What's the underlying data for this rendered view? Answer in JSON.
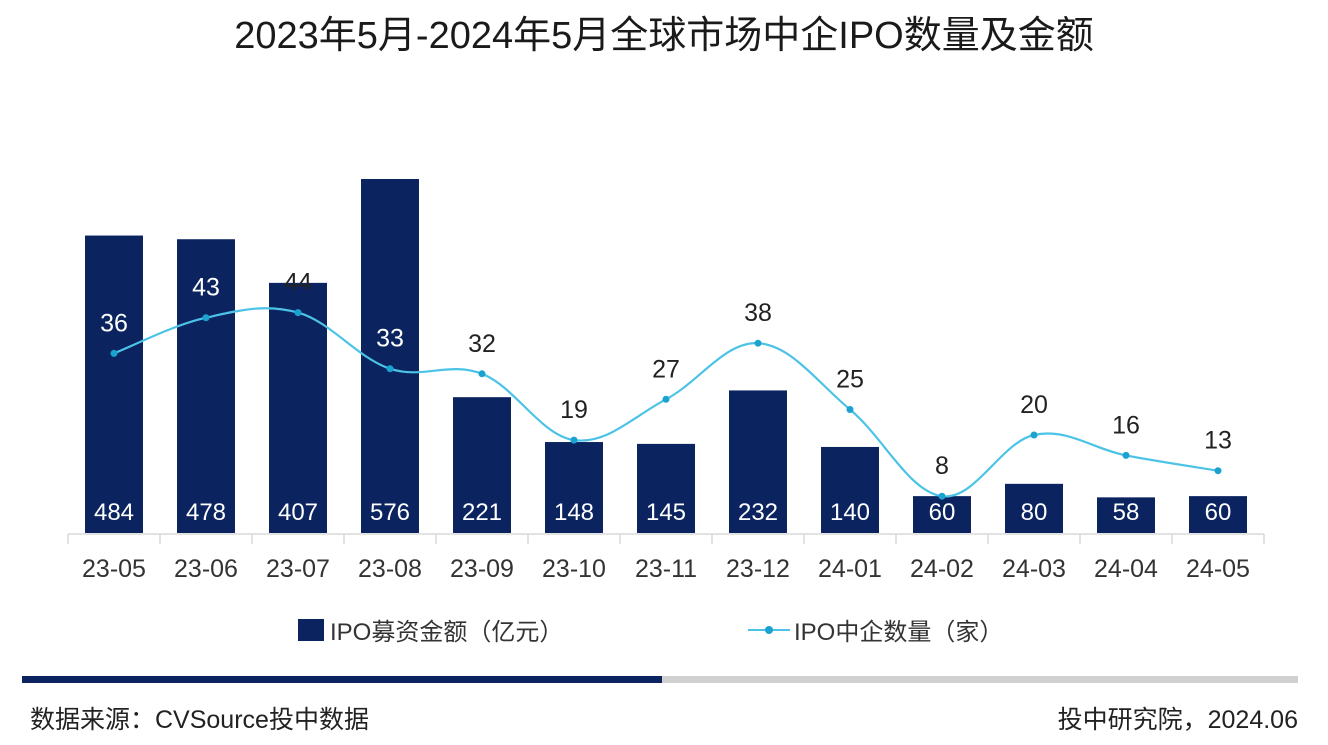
{
  "chart_data": {
    "type": "bar+line",
    "title": "2023年5月-2024年5月全球市场中企IPO数量及金额",
    "categories": [
      "23-05",
      "23-06",
      "23-07",
      "23-08",
      "23-09",
      "23-10",
      "23-11",
      "23-12",
      "24-01",
      "24-02",
      "24-03",
      "24-04",
      "24-05"
    ],
    "series": [
      {
        "name": "IPO募资金额（亿元）",
        "type": "bar",
        "color": "#0b2460",
        "values": [
          484,
          478,
          407,
          576,
          221,
          148,
          145,
          232,
          140,
          60,
          80,
          58,
          60
        ]
      },
      {
        "name": "IPO中企数量（家）",
        "type": "line",
        "color": "#4cc3e6",
        "marker_color": "#1ba3d0",
        "values": [
          36,
          43,
          44,
          33,
          32,
          19,
          27,
          38,
          25,
          8,
          20,
          16,
          13
        ]
      }
    ],
    "bar_ylim": [
      0,
      620
    ],
    "line_ylim": [
      0,
      100
    ],
    "xlabel": "",
    "ylabel": "",
    "grid": false,
    "legend_position": "bottom"
  },
  "legend": {
    "bar_label": "IPO募资金额（亿元）",
    "line_label": "IPO中企数量（家）"
  },
  "footer": {
    "source": "数据来源：CVSource投中数据",
    "credit": "投中研究院，2024.06"
  },
  "colors": {
    "bar": "#0b2460",
    "line": "#4cc3e6",
    "axis": "#d9d9d9",
    "divider_dark": "#0b2460",
    "divider_light": "#d0d0d0"
  }
}
